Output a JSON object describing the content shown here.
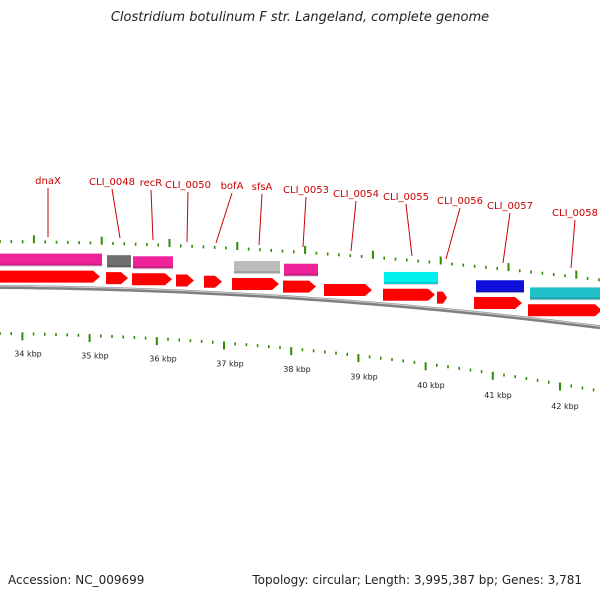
{
  "title": "Clostridium botulinum F str. Langeland, complete genome",
  "footer": {
    "accession": "Accession: NC_009699",
    "summary": "Topology: circular; Length: 3,995,387 bp; Genes: 3,781"
  },
  "colors": {
    "cds": "#ff0000",
    "label": "#cc0000",
    "tick": "#2e8b00",
    "backbone": "#808080",
    "pink": "#ee2299",
    "darkgray": "#707070",
    "lightgray": "#bbbbbb",
    "cyan": "#00f0f0",
    "blue": "#1010dd",
    "teal": "#20c0c8"
  },
  "scale_labels": [
    "34 kbp",
    "35 kbp",
    "36 kbp",
    "37 kbp",
    "38 kbp",
    "39 kbp",
    "40 kbp",
    "41 kbp",
    "42 kbp"
  ],
  "gene_labels": [
    "dnaX",
    "CLI_0048",
    "recR",
    "CLI_0050",
    "bofA",
    "sfsA",
    "CLI_0053",
    "CLI_0054",
    "CLI_0055",
    "CLI_0056",
    "CLI_0057",
    "CLI_0058"
  ]
}
